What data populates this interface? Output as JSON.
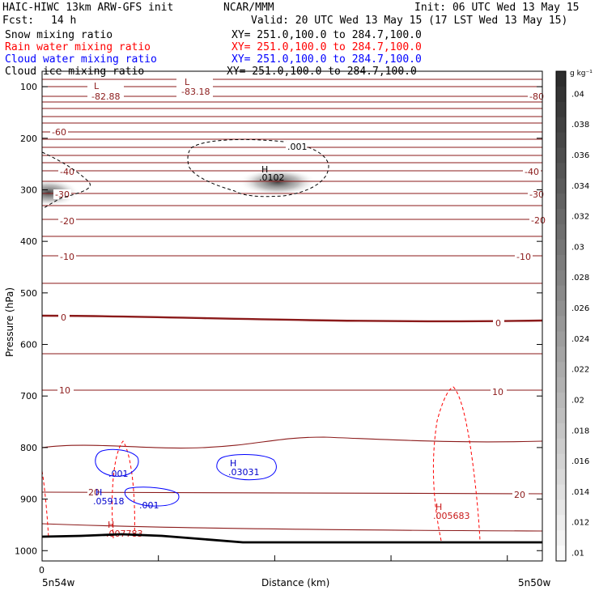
{
  "header": {
    "model": "HAIC-HIWC 13km ARW-GFS init",
    "center": "NCAR/MMM",
    "init": "Init: 06 UTC Wed 13 May 15",
    "fcst_label": "Fcst:",
    "fcst_value": "14 h",
    "valid": "Valid: 20 UTC Wed 13 May 15 (17 LST Wed 13 May 15)",
    "fields": [
      {
        "name": "Snow mixing ratio",
        "xy": "XY= 251.0,100.0 to 284.7,100.0",
        "color": "#000000"
      },
      {
        "name": "Rain water mixing ratio",
        "xy": "XY= 251.0,100.0 to 284.7,100.0",
        "color": "#ff0000"
      },
      {
        "name": "Cloud water mixing ratio",
        "xy": "XY= 251.0,100.0 to 284.7,100.0",
        "color": "#0000ff"
      },
      {
        "name": "Cloud ice mixing ratio",
        "xy": "XY= 251.0,100.0 to 284.7,100.0",
        "color": "#000000"
      }
    ]
  },
  "chart_data": {
    "type": "cross-section",
    "ylabel": "Pressure (hPa)",
    "xlabel": "Distance (km)",
    "ylim": [
      1020,
      70
    ],
    "y_ticks": [
      100,
      200,
      300,
      400,
      500,
      600,
      700,
      800,
      900,
      1000
    ],
    "x_tick_labels": [
      "0"
    ],
    "x_end_labels": {
      "left": "5n54w",
      "right": "5n50w"
    },
    "temperature_contours": {
      "color": "#8b1a1a",
      "labels": [
        {
          "text": "-80",
          "side": "right"
        },
        {
          "text": "-60",
          "side": "left"
        },
        {
          "text": "-40",
          "side": "both"
        },
        {
          "text": "-30",
          "side": "both"
        },
        {
          "text": "-20",
          "side": "both"
        },
        {
          "text": "-10",
          "side": "both"
        },
        {
          "text": "0",
          "side": "both"
        },
        {
          "text": "10",
          "side": "both"
        },
        {
          "text": "20",
          "side": "both"
        }
      ],
      "extrema": [
        {
          "type": "L",
          "value": "-82.88"
        },
        {
          "type": "L",
          "value": "-83.18"
        }
      ]
    },
    "snow": {
      "contour_label": ".001",
      "extrema": [
        {
          "type": "H",
          "value": ".0102"
        }
      ]
    },
    "rain": {
      "color": "#ff0000",
      "extrema": [
        {
          "type": "H",
          "value": ".007783"
        },
        {
          "type": "H",
          "value": ".005683"
        }
      ]
    },
    "cloud_water": {
      "color": "#0000ff",
      "contour_labels": [
        ".001",
        ".001"
      ],
      "extrema": [
        {
          "type": "H",
          "value": ".03031"
        },
        {
          "type": "H",
          "value": ".05918"
        }
      ]
    },
    "colorbar": {
      "unit": "g kg⁻¹",
      "labels": [
        ".04",
        ".038",
        ".036",
        ".034",
        ".032",
        ".03",
        ".028",
        ".026",
        ".024",
        ".022",
        ".02",
        ".018",
        ".016",
        ".014",
        ".012",
        ".01"
      ],
      "levels": [
        0.041,
        0.04,
        0.039,
        0.038,
        0.037,
        0.036,
        0.035,
        0.034,
        0.033,
        0.032,
        0.031,
        0.03,
        0.029,
        0.028,
        0.027,
        0.026,
        0.025,
        0.024,
        0.023,
        0.022,
        0.021,
        0.02,
        0.019,
        0.018,
        0.017,
        0.016,
        0.015,
        0.014,
        0.013,
        0.012,
        0.011,
        0.01
      ]
    }
  }
}
